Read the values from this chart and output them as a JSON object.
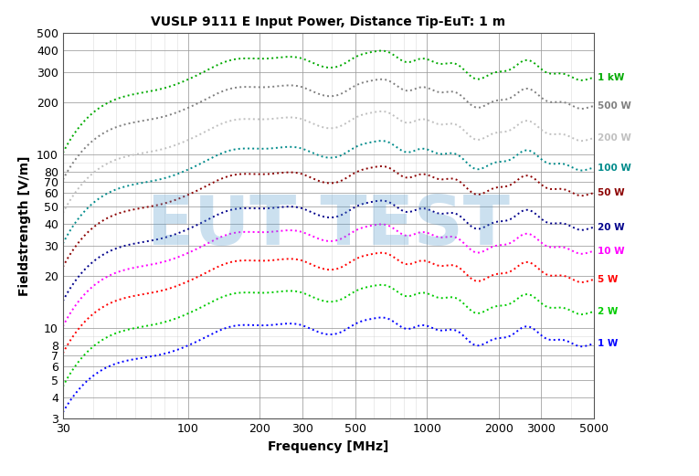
{
  "title": "VUSLP 9111 E Input Power, Distance Tip-EuT: 1 m",
  "xlabel": "Frequency [MHz]",
  "ylabel": "Fieldstrength [V/m]",
  "xmin": 30,
  "xmax": 5000,
  "ymin": 3,
  "ymax": 500,
  "watermark": "EUT TEST",
  "curves": [
    {
      "label": "1 kW",
      "color": "#00AA00",
      "start": 100,
      "peak": 380,
      "plateau": 320
    },
    {
      "label": "500 W",
      "color": "#808080",
      "start": 70,
      "peak": 260,
      "plateau": 220
    },
    {
      "label": "200 W",
      "color": "#C0C0C0",
      "start": 45,
      "peak": 170,
      "plateau": 140
    },
    {
      "label": "100 W",
      "color": "#008B8B",
      "start": 30,
      "peak": 115,
      "plateau": 100
    },
    {
      "label": "50 W",
      "color": "#8B0000",
      "start": 22,
      "peak": 82,
      "plateau": 70
    },
    {
      "label": "20 W",
      "color": "#00008B",
      "start": 14,
      "peak": 52,
      "plateau": 44
    },
    {
      "label": "10 W",
      "color": "#FF00FF",
      "start": 10,
      "peak": 38,
      "plateau": 32
    },
    {
      "label": "5 W",
      "color": "#FF0000",
      "start": 7,
      "peak": 26,
      "plateau": 22
    },
    {
      "label": "2 W",
      "color": "#00CC00",
      "start": 4.5,
      "peak": 17,
      "plateau": 14
    },
    {
      "label": "1 W",
      "color": "#0000FF",
      "start": 3.2,
      "peak": 11,
      "plateau": 9
    }
  ],
  "background": "#FFFFFF",
  "grid_color": "#AAAAAA"
}
